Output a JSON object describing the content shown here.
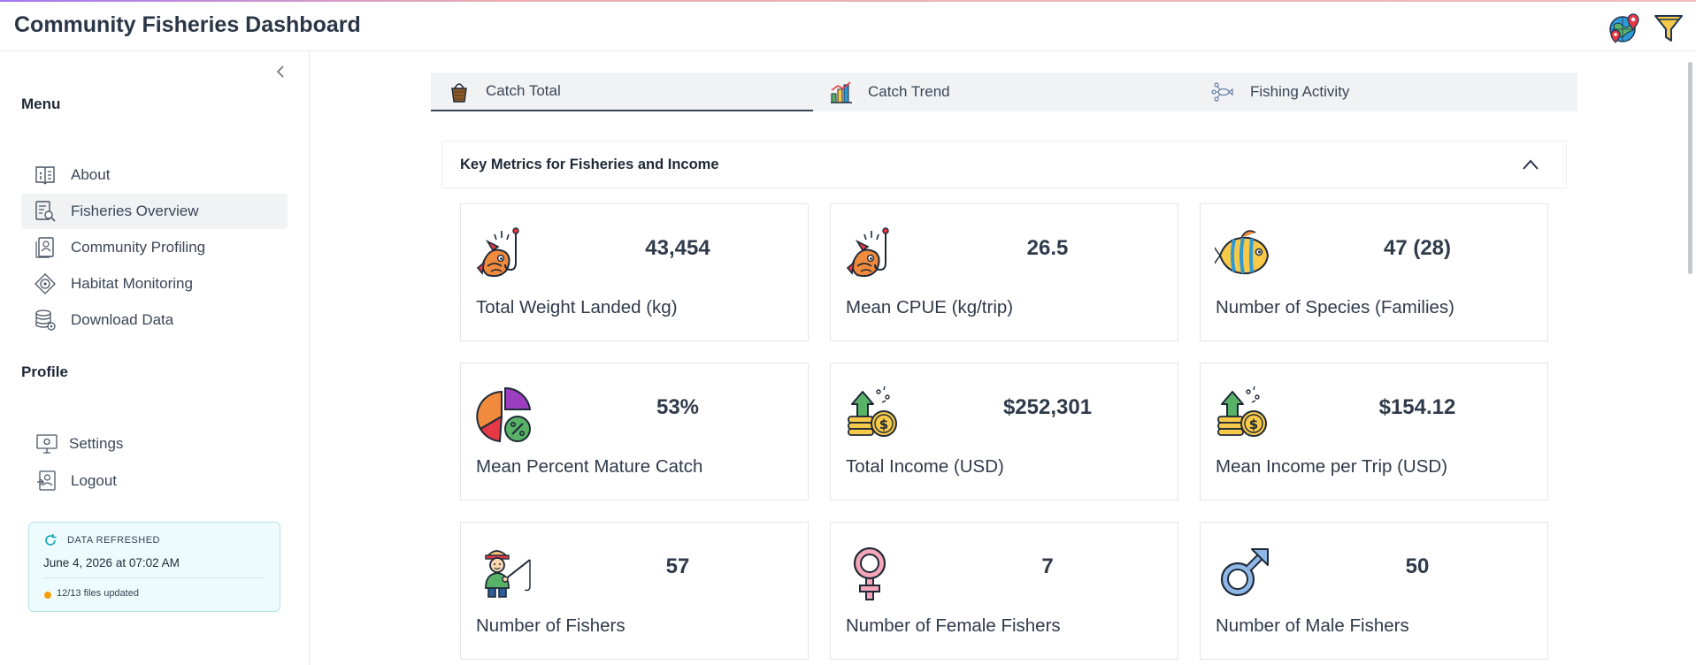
{
  "app": {
    "title": "Community Fisheries Dashboard"
  },
  "header": {
    "icons": [
      "globe-location-icon",
      "filter-icon"
    ]
  },
  "sidebar": {
    "menu_label": "Menu",
    "items": [
      {
        "label": "About",
        "icon": "book-info-icon"
      },
      {
        "label": "Fisheries Overview",
        "icon": "document-search-icon",
        "active": true
      },
      {
        "label": "Community Profiling",
        "icon": "community-document-icon"
      },
      {
        "label": "Habitat Monitoring",
        "icon": "habitat-target-icon"
      },
      {
        "label": "Download Data",
        "icon": "database-gear-icon"
      }
    ],
    "profile_label": "Profile",
    "profile_items": [
      {
        "label": "Settings",
        "icon": "settings-monitor-icon"
      },
      {
        "label": "Logout",
        "icon": "logout-icon"
      }
    ],
    "refresh": {
      "title": "DATA REFRESHED",
      "date": "June 4, 2026 at 07:02 AM",
      "files": "12/13 files updated",
      "status_color": "#f59e0b"
    }
  },
  "tabs": [
    {
      "label": "Catch Total",
      "icon": "basket-icon",
      "active": true
    },
    {
      "label": "Catch Trend",
      "icon": "bar-chart-icon"
    },
    {
      "label": "Fishing Activity",
      "icon": "fish-network-icon"
    }
  ],
  "key_metrics": {
    "title": "Key Metrics for Fisheries and Income",
    "cards": [
      {
        "value": "43,454",
        "label": "Total Weight Landed (kg)",
        "icon": "fish-hook-icon"
      },
      {
        "value": "26.5",
        "label": "Mean CPUE (kg/trip)",
        "icon": "fish-hook-icon"
      },
      {
        "value": "47 (28)",
        "label": "Number of Species (Families)",
        "icon": "tropical-fish-icon"
      },
      {
        "value": "53%",
        "label": "Mean Percent Mature Catch",
        "icon": "pie-percent-icon"
      },
      {
        "value": "$252,301",
        "label": "Total Income (USD)",
        "icon": "coins-growth-icon"
      },
      {
        "value": "$154.12",
        "label": "Mean Income per Trip (USD)",
        "icon": "coins-growth-icon"
      },
      {
        "value": "57",
        "label": "Number of Fishers",
        "icon": "fisher-icon"
      },
      {
        "value": "7",
        "label": "Number of Female Fishers",
        "icon": "female-symbol-icon"
      },
      {
        "value": "50",
        "label": "Number of Male Fishers",
        "icon": "male-symbol-icon"
      }
    ]
  },
  "colors": {
    "accent": "#2f3a4a",
    "refresh_bg": "#eefbfd",
    "refresh_border": "#b6e3ea",
    "active_nav_bg": "#f1f2f4"
  }
}
